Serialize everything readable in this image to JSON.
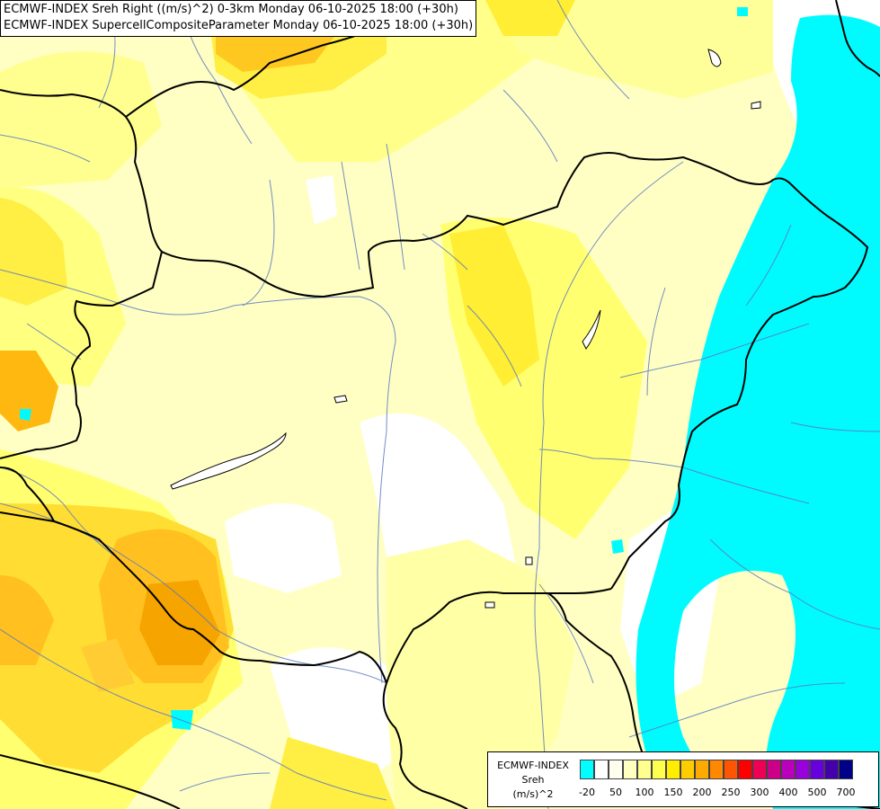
{
  "title": {
    "line1": "ECMWF-INDEX Sreh Right ((m/s)^2) 0-3km Monday 06-10-2025 18:00 (+30h)",
    "line2": "ECMWF-INDEX SupercellCompositeParameter Monday 06-10-2025 18:00 (+30h)"
  },
  "legend": {
    "source": "ECMWF-INDEX",
    "parameter": "Sreh",
    "unit": "(m/s)^2",
    "colors": [
      "#00ffff",
      "#ffffff",
      "#fffff0",
      "#ffffc0",
      "#ffff90",
      "#ffff50",
      "#ffee00",
      "#ffcc00",
      "#ffaa00",
      "#ff8800",
      "#ff5500",
      "#ff0000",
      "#ee0055",
      "#cc0088",
      "#bb00bb",
      "#9900dd",
      "#6600dd",
      "#4400aa",
      "#000088"
    ],
    "ticks": [
      "-20",
      "50",
      "100",
      "150",
      "200",
      "250",
      "300",
      "400",
      "500",
      "700"
    ]
  },
  "colors": {
    "cyan_negative": "#00ffff",
    "light_yellow": "#ffffb3",
    "yellow": "#ffff80",
    "gold": "#ffe033",
    "orange": "#ffbb11",
    "dark_orange": "#f5a000"
  }
}
